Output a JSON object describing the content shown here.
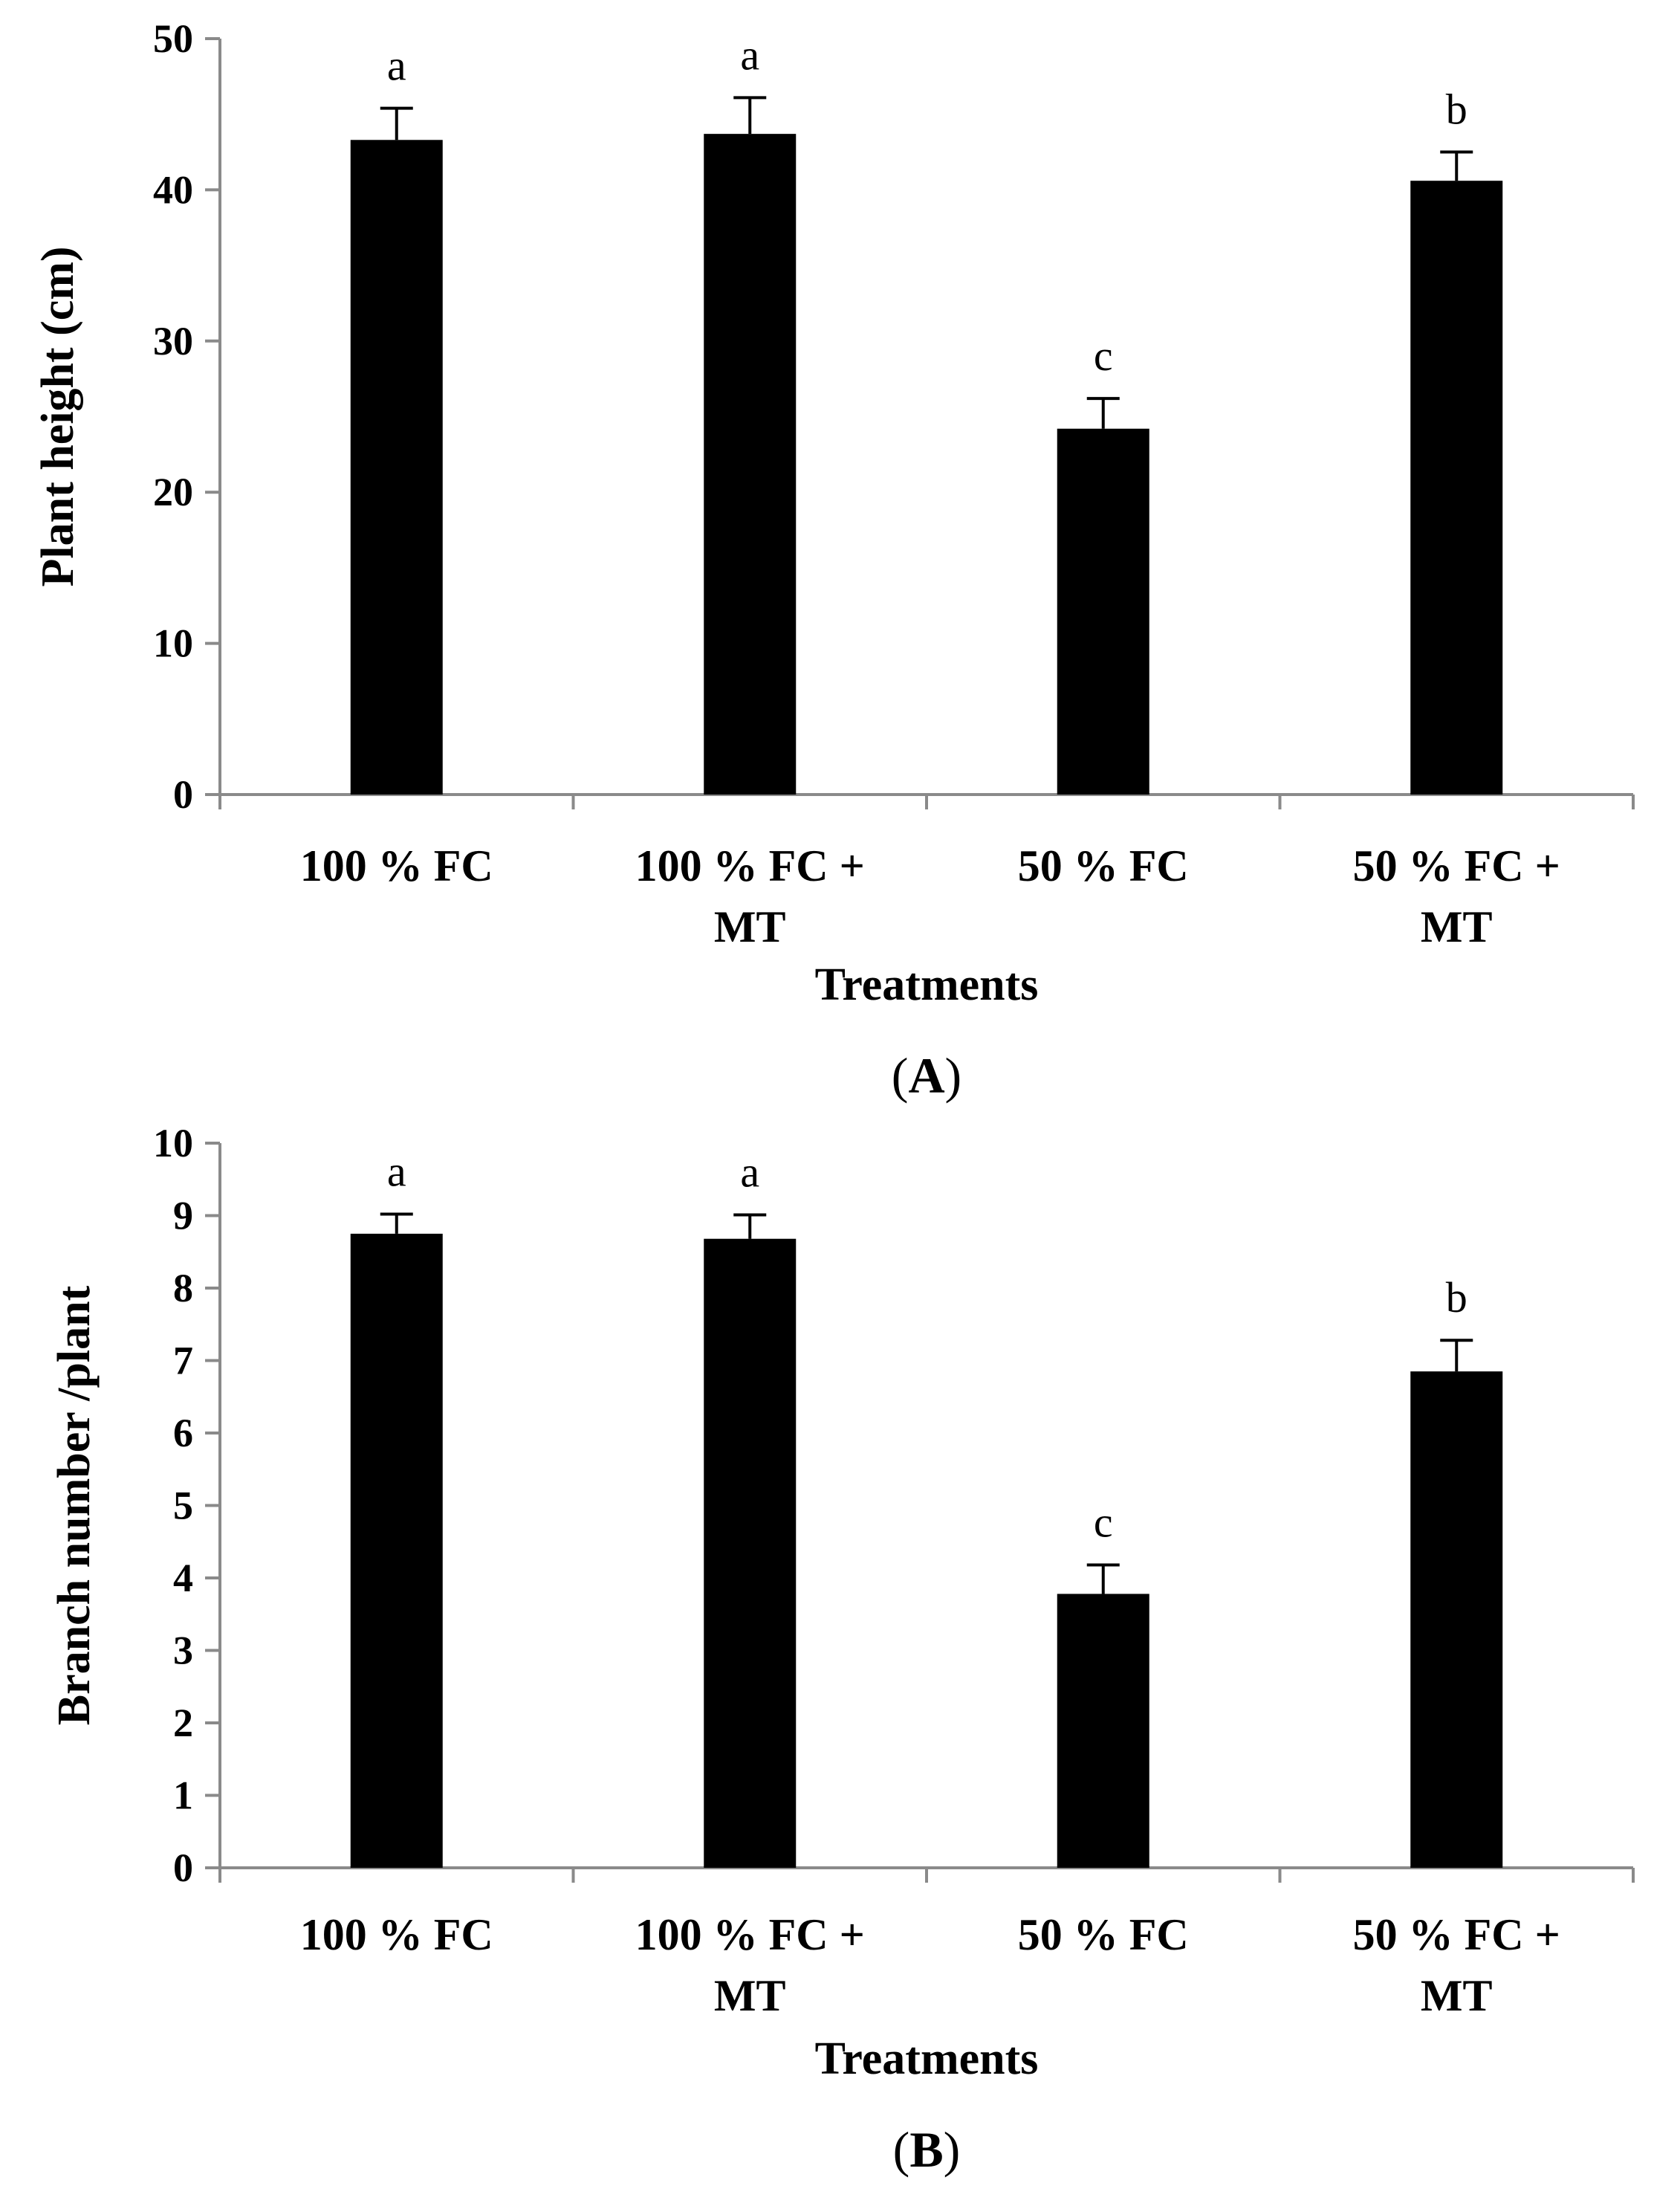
{
  "chart_data": [
    {
      "type": "bar",
      "panel_label": "(A)",
      "panel_letter": "A",
      "categories": [
        [
          "100 % FC"
        ],
        [
          "100 % FC +",
          "MT"
        ],
        [
          "50 % FC"
        ],
        [
          "50 % FC +",
          "MT"
        ]
      ],
      "values": [
        43.3,
        43.7,
        24.2,
        40.6
      ],
      "errors": [
        2.1,
        2.4,
        2.0,
        1.9
      ],
      "significance": [
        "a",
        "a",
        "c",
        "b"
      ],
      "xlabel": "Treatments",
      "ylabel": "Plant height (cm)",
      "ylim": [
        0,
        50
      ],
      "yticks": [
        "0",
        "10",
        "20",
        "30",
        "40",
        "50"
      ],
      "bar_color": "#000000",
      "grid": false
    },
    {
      "type": "bar",
      "panel_label": "(B)",
      "panel_letter": "B",
      "categories": [
        [
          "100 % FC"
        ],
        [
          "100 % FC +",
          "MT"
        ],
        [
          "50 % FC"
        ],
        [
          "50 % FC +",
          "MT"
        ]
      ],
      "values": [
        8.75,
        8.68,
        3.78,
        6.85
      ],
      "errors": [
        0.27,
        0.33,
        0.4,
        0.43
      ],
      "significance": [
        "a",
        "a",
        "c",
        "b"
      ],
      "xlabel": "Treatments",
      "ylabel": "Branch number /plant",
      "ylim": [
        0,
        10
      ],
      "yticks": [
        "0",
        "1",
        "2",
        "3",
        "4",
        "5",
        "6",
        "7",
        "8",
        "9",
        "10"
      ],
      "bar_color": "#000000",
      "grid": false
    }
  ]
}
